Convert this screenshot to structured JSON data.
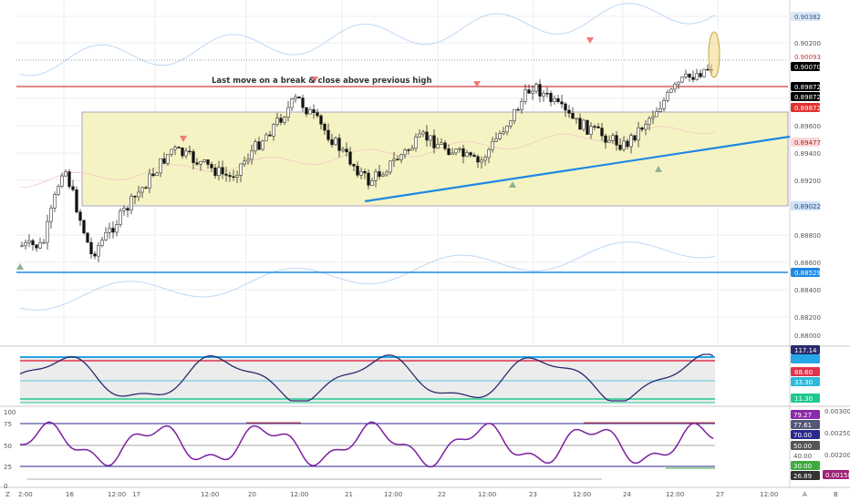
{
  "annotation": "Last move on a break & close above previous high",
  "price_axis": {
    "ticks": [
      "0.90382",
      "0.90200",
      "0.90093",
      "0.90070",
      "0.89872",
      "0.89872",
      "0.89872",
      "0.89600",
      "0.89477",
      "0.89400",
      "0.89200",
      "0.89022",
      "0.88800",
      "0.88600",
      "0.88529",
      "0.88400",
      "0.88200",
      "0.88000"
    ],
    "badges": [
      {
        "text": "0.90382",
        "bg": "#dbe7f5",
        "fg": "#2a5a94"
      },
      {
        "text": "0.90093",
        "bg": "#ffffff",
        "fg": "#cc3333"
      },
      {
        "text": "0.90070",
        "bg": "#000000",
        "fg": "#ffffff"
      },
      {
        "text": "0.89872",
        "bg": "#000000",
        "fg": "#ffffff"
      },
      {
        "text": "0.89872",
        "bg": "#000000",
        "fg": "#ffffff"
      },
      {
        "text": "0.89872",
        "bg": "#e03030",
        "fg": "#ffffff"
      },
      {
        "text": "0.89477",
        "bg": "#fbd9d9",
        "fg": "#b02424"
      },
      {
        "text": "0.89022",
        "bg": "#cde0f5",
        "fg": "#244f86"
      },
      {
        "text": "0.88529",
        "bg": "#1e88e5",
        "fg": "#ffffff"
      }
    ]
  },
  "cci_axis": {
    "badges": [
      {
        "text": "117.14",
        "bg": "#2a2a6e",
        "fg": "#ffffff"
      },
      {
        "text": "",
        "bg": "#26a6e6",
        "fg": "#ffffff"
      },
      {
        "text": "88.60",
        "bg": "#e0344a",
        "fg": "#ffffff"
      },
      {
        "text": "33.30",
        "bg": "#2fb8d8",
        "fg": "#ffffff"
      },
      {
        "text": "11.30",
        "bg": "#1ec98e",
        "fg": "#ffffff"
      }
    ]
  },
  "rsi_axis": {
    "left_ticks": [
      "100",
      "75",
      "50",
      "25",
      "0"
    ],
    "right_ticks": [
      "0.00300",
      "0.00250",
      "0.00200"
    ],
    "badges": [
      {
        "text": "79.27",
        "bg": "#8a2aa8",
        "fg": "#ffffff"
      },
      {
        "text": "77.61",
        "bg": "#555577",
        "fg": "#ffffff"
      },
      {
        "text": "70.00",
        "bg": "#2a2a8e",
        "fg": "#ffffff"
      },
      {
        "text": "50.00",
        "bg": "#555555",
        "fg": "#ffffff"
      },
      {
        "text": "40.00",
        "bg": "#ffffff",
        "fg": "#555555"
      },
      {
        "text": "30.00",
        "bg": "#3daa3d",
        "fg": "#ffffff"
      },
      {
        "text": "26.89",
        "bg": "#333333",
        "fg": "#ffffff"
      },
      {
        "text": "0.00158",
        "bg": "#a0207a",
        "fg": "#ffffff"
      }
    ]
  },
  "time_axis": {
    "labels": [
      "2:00",
      "16",
      "12:00",
      "17",
      "12:00",
      "20",
      "12:00",
      "21",
      "12:00",
      "22",
      "12:00",
      "23",
      "12:00",
      "24",
      "12:00",
      "27",
      "12:00"
    ],
    "left_marker": "Z",
    "right_a": "A",
    "right_b": "B"
  },
  "colors": {
    "zone_fill": "#f5f3c4",
    "resistance": "#d03a3a",
    "support": "#1e88e5",
    "trendline": "#1e88e5",
    "cci_line": "#2a2a6e",
    "rsi_line": "#7b1fa2",
    "band": "#bcd8f6"
  },
  "chart_data": {
    "type": "candlestick",
    "symbol_price_levels": {
      "upper_resistance": 0.89872,
      "current_price": 0.9007,
      "range_top": 0.89872,
      "range_bottom": 0.89022,
      "support": 0.88529
    },
    "indicators": [
      "Bollinger-style envelope",
      "CCI",
      "RSI"
    ]
  }
}
